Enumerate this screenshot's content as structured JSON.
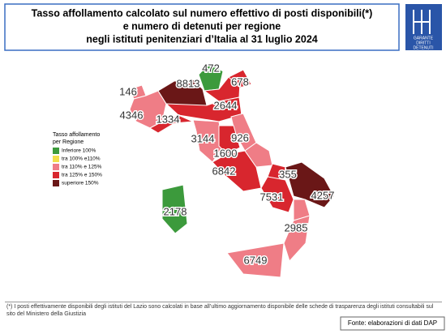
{
  "header": {
    "title_lines": [
      "Tasso affollamento calcolato sul numero effettivo di posti disponibili(*)",
      "e numero di detenuti per regione",
      "negli istituti penitenziari d’Italia al 31 luglio 2024"
    ],
    "logo": [
      "GARANTE",
      "DIRITTI",
      "DETENUTI"
    ]
  },
  "legend": {
    "title": [
      "Tasso affollamento",
      "per Regione"
    ],
    "items": [
      {
        "label": "Inferiore 100%",
        "color": "#3c9a3c"
      },
      {
        "label": "tra 100% e110%",
        "color": "#f2df4a"
      },
      {
        "label": "tra 110% e 125%",
        "color": "#ef7d86"
      },
      {
        "label": "tra 125% e 150%",
        "color": "#d8262e"
      },
      {
        "label": "superiore 150%",
        "color": "#6a1717"
      }
    ]
  },
  "regions": [
    {
      "value": 146,
      "level": 2
    },
    {
      "value": 4346,
      "level": 2
    },
    {
      "value": 8813,
      "level": 4
    },
    {
      "value": 472,
      "level": 0
    },
    {
      "level": 3
    },
    {
      "value": 678,
      "level": 3
    },
    {
      "value": 2644,
      "level": 3
    },
    {
      "value": 1334,
      "level": 3
    },
    {
      "value": 3144,
      "level": 2
    },
    {
      "value": 926,
      "level": 2
    },
    {
      "value": 1600,
      "level": 3
    },
    {
      "value": 6842,
      "level": 3
    },
    {
      "level": 2
    },
    {
      "value": 355,
      "level": 3
    },
    {
      "value": 7531,
      "level": 3
    },
    {
      "value": 4257,
      "level": 4
    },
    {
      "level": 2
    },
    {
      "value": 2985,
      "level": 2
    },
    {
      "value": 6749,
      "level": 2
    },
    {
      "value": 2178,
      "level": 0
    }
  ],
  "footnote": "(*) I posti effettivamente disponibili degli istituti del Lazio sono calcolati in base all’ultimo aggiornamento disponibile delle schede di trasparenza degli istituti consultabili sul sito del Ministero della Giustizia",
  "source": "Fonte: elaborazioni di dati DAP"
}
